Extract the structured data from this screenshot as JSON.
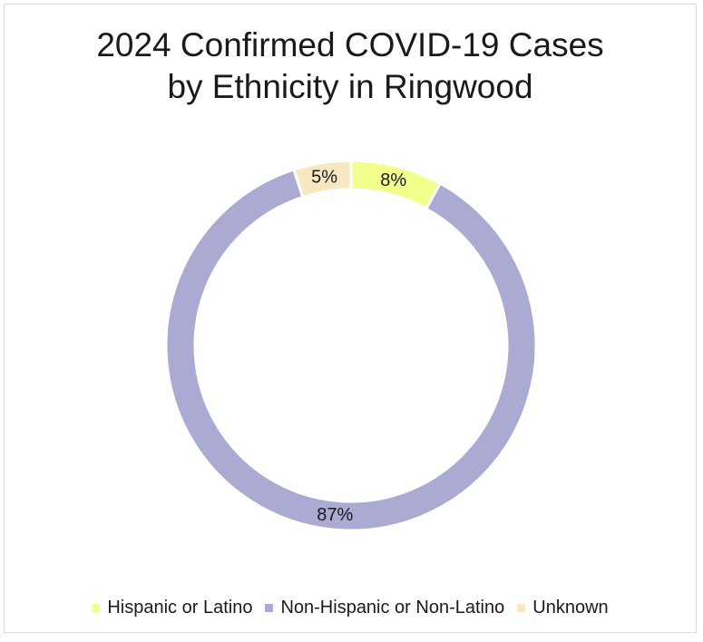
{
  "chart_data": {
    "type": "pie",
    "donut": true,
    "title_lines": [
      "2024 Confirmed COVID-19 Cases",
      "by Ethnicity in Ringwood"
    ],
    "categories": [
      "Hispanic or Latino",
      "Non-Hispanic or Non-Latino",
      "Unknown"
    ],
    "values": [
      8,
      87,
      5
    ],
    "labels": [
      "8%",
      "87%",
      "5%"
    ],
    "colors": [
      "#f2ff8c",
      "#aaaad2",
      "#f8e8c2"
    ],
    "legend_position": "bottom"
  }
}
